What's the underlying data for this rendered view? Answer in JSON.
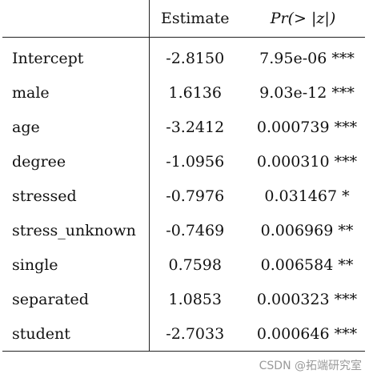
{
  "table": {
    "headers": {
      "variable": "",
      "estimate": "Estimate",
      "pvalue": "Pr(> |z|)"
    },
    "rows": [
      {
        "variable": "Intercept",
        "estimate": "-2.8150",
        "pvalue": "7.95e-06",
        "signif": "***"
      },
      {
        "variable": "male",
        "estimate": "1.6136",
        "pvalue": "9.03e-12",
        "signif": "***"
      },
      {
        "variable": "age",
        "estimate": "-3.2412",
        "pvalue": "0.000739",
        "signif": "***"
      },
      {
        "variable": "degree",
        "estimate": "-1.0956",
        "pvalue": "0.000310",
        "signif": "***"
      },
      {
        "variable": "stressed",
        "estimate": "-0.7976",
        "pvalue": "0.031467",
        "signif": "*"
      },
      {
        "variable": "stress_unknown",
        "estimate": "-0.7469",
        "pvalue": "0.006969",
        "signif": "**"
      },
      {
        "variable": "single",
        "estimate": "0.7598",
        "pvalue": "0.006584",
        "signif": "**"
      },
      {
        "variable": "separated",
        "estimate": "1.0853",
        "pvalue": "0.000323",
        "signif": "***"
      },
      {
        "variable": "student",
        "estimate": "-2.7033",
        "pvalue": "0.000646",
        "signif": "***"
      }
    ]
  },
  "watermark": "CSDN @拓端研究室"
}
